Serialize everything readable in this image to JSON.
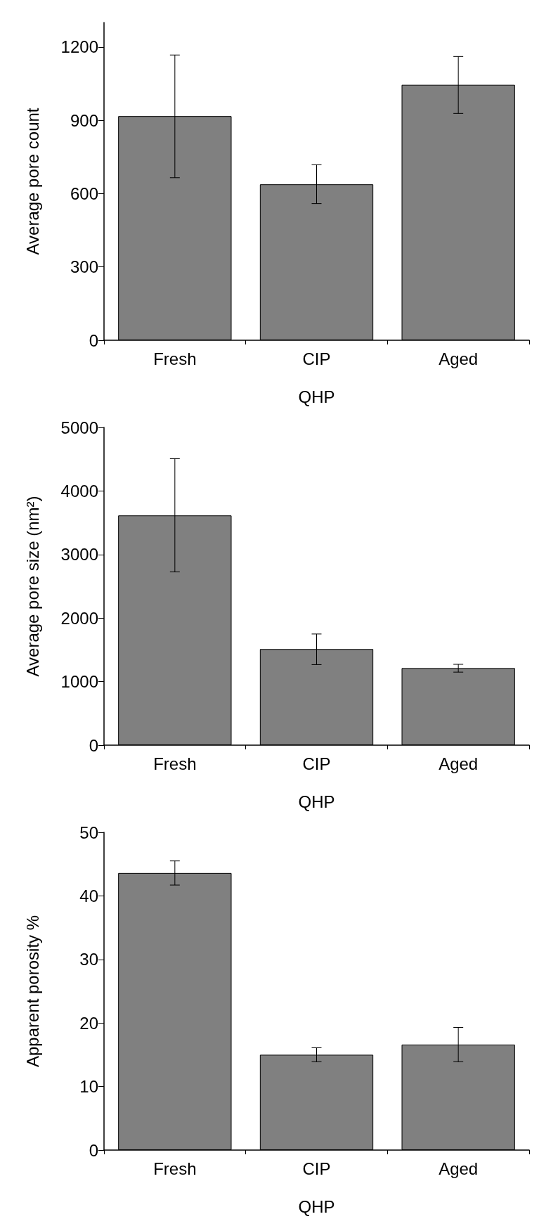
{
  "chart_data": [
    {
      "type": "bar",
      "xlabel": "QHP",
      "ylabel": "Average pore count",
      "categories": [
        "Fresh",
        "CIP",
        "Aged"
      ],
      "values": [
        917,
        638,
        1045
      ],
      "color": "#808080",
      "errors": [
        [
          665,
          1167
        ],
        [
          559,
          718
        ],
        [
          928,
          1161
        ]
      ],
      "ylim": [
        0,
        1300
      ],
      "yticks": [
        0,
        300,
        600,
        900,
        1200
      ],
      "grid": false
    },
    {
      "type": "bar",
      "xlabel": "QHP",
      "ylabel": "Average pore size (nm²)",
      "categories": [
        "Fresh",
        "CIP",
        "Aged"
      ],
      "values": [
        3615,
        1513,
        1213
      ],
      "color": "#808080",
      "errors": [
        [
          2726,
          4509
        ],
        [
          1267,
          1749
        ],
        [
          1149,
          1272
        ]
      ],
      "ylim": [
        0,
        5000
      ],
      "yticks": [
        0,
        1000,
        2000,
        3000,
        4000,
        5000
      ],
      "grid": false
    },
    {
      "type": "bar",
      "xlabel": "QHP",
      "ylabel": "Apparent porosity %",
      "categories": [
        "Fresh",
        "CIP",
        "Aged"
      ],
      "values": [
        43.6,
        15.0,
        16.6
      ],
      "color": "#808080",
      "errors": [
        [
          41.7,
          45.5
        ],
        [
          13.9,
          16.1
        ],
        [
          13.9,
          19.3
        ]
      ],
      "ylim": [
        0,
        50
      ],
      "yticks": [
        0,
        10,
        20,
        30,
        40,
        50
      ],
      "grid": false
    }
  ]
}
